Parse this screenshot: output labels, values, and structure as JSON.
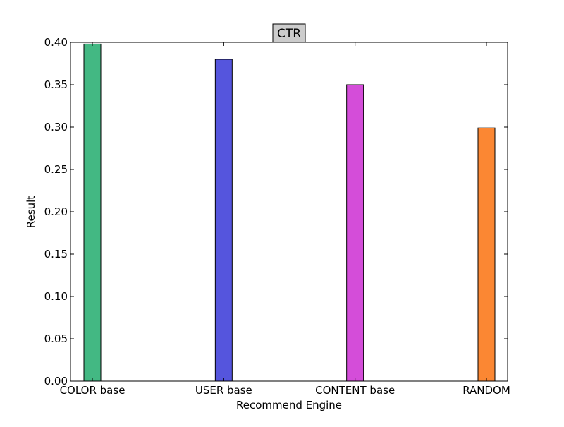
{
  "chart_data": {
    "type": "bar",
    "title": "CTR",
    "xlabel": "Recommend Engine",
    "ylabel": "Result",
    "categories": [
      "COLOR base",
      "USER base",
      "CONTENT base",
      "RANDOM"
    ],
    "values": [
      0.398,
      0.38,
      0.35,
      0.299
    ],
    "colors": [
      "#43b883",
      "#5555dd",
      "#d44dd9",
      "#fb8733"
    ],
    "ylim": [
      0,
      0.4
    ],
    "yticks": [
      "0.00",
      "0.05",
      "0.10",
      "0.15",
      "0.20",
      "0.25",
      "0.30",
      "0.35",
      "0.40"
    ],
    "grid": false,
    "legend": false
  }
}
